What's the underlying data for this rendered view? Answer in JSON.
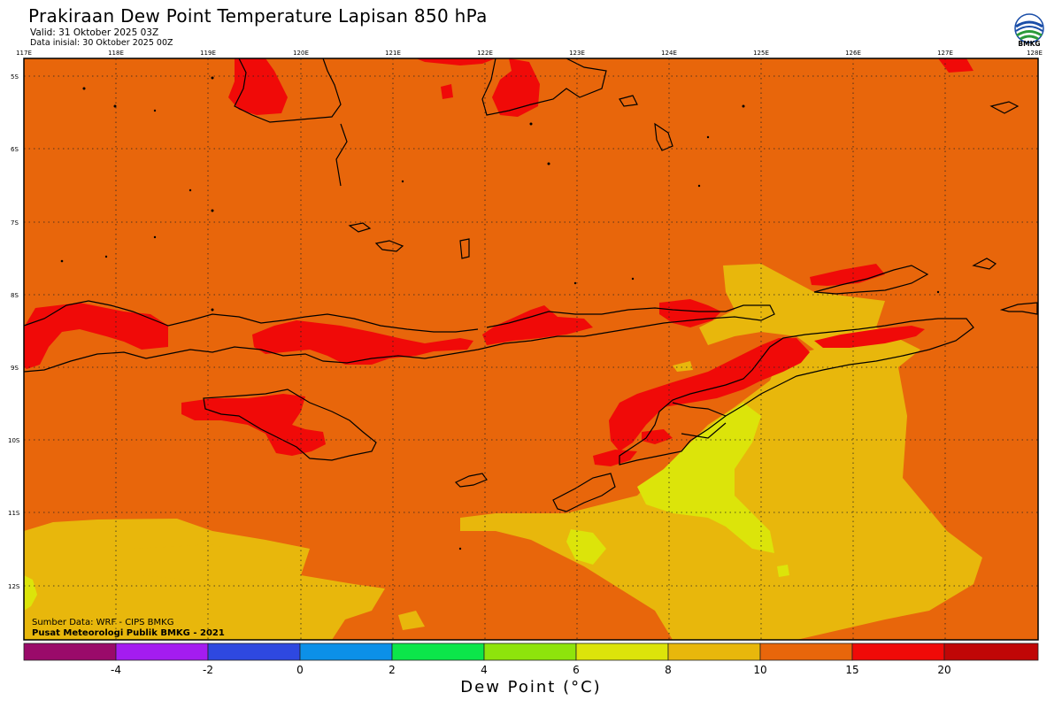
{
  "header": {
    "title": "Prakiraan Dew Point Temperature Lapisan 850 hPa",
    "valid": "Valid: 31 Oktober 2025 03Z",
    "initial": "Data inisial: 30 Oktober 2025 00Z"
  },
  "logo": {
    "icon": "bmkg-logo-icon",
    "text": "BMKG"
  },
  "map": {
    "lon_labels": [
      "117E",
      "118E",
      "119E",
      "120E",
      "121E",
      "122E",
      "123E",
      "124E",
      "125E",
      "126E",
      "127E",
      "128E"
    ],
    "lat_labels": [
      "5S",
      "6S",
      "7S",
      "8S",
      "9S",
      "10S",
      "11S",
      "12S"
    ],
    "background_color": "#e8660b",
    "band_colors": {
      "8-10": "#e8b70c",
      "6-8": "#dce40a",
      "15-20": "#f00a08"
    }
  },
  "credits": {
    "source": "Sumber Data: WRF - CIPS BMKG",
    "center": "Pusat Meteorologi Publik BMKG - 2021"
  },
  "legend": {
    "colors": [
      "#9a0a6a",
      "#a41cf0",
      "#2e48e0",
      "#0c90e8",
      "#0ce64a",
      "#8ee40c",
      "#dce40a",
      "#e8b70c",
      "#e8660b",
      "#f00a08",
      "#c00606"
    ],
    "ticks": [
      "-4",
      "-2",
      "0",
      "2",
      "4",
      "6",
      "8",
      "10",
      "15",
      "20"
    ],
    "label": "Dew Point (°C)"
  }
}
